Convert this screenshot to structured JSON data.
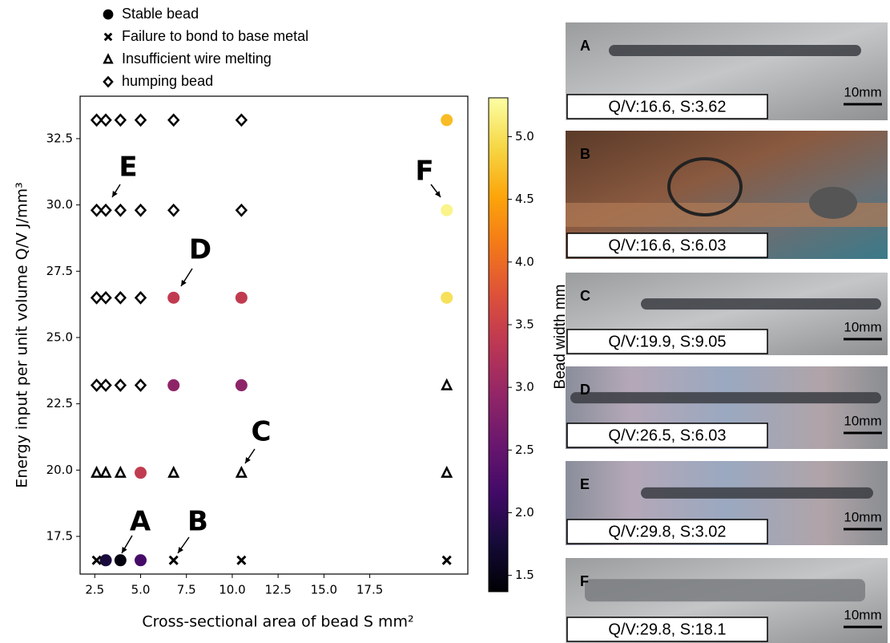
{
  "chart_data": {
    "type": "scatter",
    "xlabel": "Cross-sectional  area of bead S mm²",
    "ylabel": "Energy input per unit volume Q/V J/mm³",
    "xlim": [
      1.7,
      22.85
    ],
    "xticks": [
      2.5,
      {
        "value": 5,
        "label": "5.0"
      },
      7.5,
      {
        "value": 10,
        "label": "10.0"
      },
      12.5,
      {
        "value": 15,
        "label": "15.0"
      },
      17.5
    ],
    "ylim": [
      16.08,
      34.1
    ],
    "yticks": [
      17.5,
      {
        "value": 20,
        "label": "20.0"
      },
      22.5,
      {
        "value": 25,
        "label": "25.0"
      },
      27.5,
      {
        "value": 30,
        "label": "30.0"
      },
      32.5
    ],
    "colormap": "inferno",
    "clabel": "Bead width mm",
    "clim": [
      1.37,
      5.31
    ],
    "cticks": [
      1.5,
      {
        "value": 2,
        "label": "2.0"
      },
      2.5,
      {
        "value": 3,
        "label": "3.0"
      },
      3.5,
      {
        "value": 4,
        "label": "4.0"
      },
      4.5,
      {
        "value": 5,
        "label": "5.0"
      }
    ],
    "series": [
      {
        "name": "Stable bead",
        "marker": "circle",
        "color": "#000000",
        "x": [
          3.1,
          3.9,
          5.0,
          5.0,
          6.8,
          10.5,
          6.8,
          10.5,
          21.7,
          21.7,
          21.7
        ],
        "y": [
          16.6,
          16.6,
          16.6,
          19.9,
          23.2,
          23.2,
          26.5,
          26.5,
          26.5,
          29.8,
          33.2
        ],
        "values": [
          1.8,
          1.45,
          2.2,
          3.4,
          2.9,
          2.9,
          3.4,
          3.4,
          5.0,
          5.2,
          4.7
        ]
      },
      {
        "name": "Failure to bond to base metal",
        "marker": "cross",
        "color": "#000000",
        "x": [
          2.6,
          6.8,
          10.5,
          21.7
        ],
        "y": [
          16.6,
          16.6,
          16.6,
          16.6
        ]
      },
      {
        "name": "Insufficient  wire melting",
        "marker": "triangle",
        "color": "#000000",
        "x": [
          2.6,
          3.1,
          3.9,
          6.8,
          10.5,
          21.7,
          21.7
        ],
        "y": [
          19.9,
          19.9,
          19.9,
          19.9,
          19.9,
          19.9,
          23.2
        ]
      },
      {
        "name": "humping bead",
        "marker": "diamond",
        "color": "#000000",
        "x": [
          2.6,
          3.1,
          3.9,
          5.0,
          6.8,
          10.5,
          2.6,
          3.1,
          3.9,
          5.0,
          6.8,
          10.5,
          2.6,
          3.1,
          3.9,
          5.0,
          2.6,
          3.1,
          3.9,
          5.0
        ],
        "y": [
          33.2,
          33.2,
          33.2,
          33.2,
          33.2,
          33.2,
          29.8,
          29.8,
          29.8,
          29.8,
          29.8,
          29.8,
          26.5,
          26.5,
          26.5,
          26.5,
          23.2,
          23.2,
          23.2,
          23.2
        ]
      }
    ],
    "annotations": [
      "A",
      "B",
      "C",
      "D",
      "E",
      "F"
    ]
  },
  "panels": [
    {
      "label": "A",
      "caption": "Q/V:16.6, S:3.62",
      "scale": "10mm"
    },
    {
      "label": "B",
      "caption": "Q/V:16.6, S:6.03"
    },
    {
      "label": "C",
      "caption": "Q/V:19.9, S:9.05",
      "scale": "10mm"
    },
    {
      "label": "D",
      "caption": "Q/V:26.5, S:6.03",
      "scale": "10mm"
    },
    {
      "label": "E",
      "caption": "Q/V:29.8, S:3.02",
      "scale": "10mm"
    },
    {
      "label": "F",
      "caption": "Q/V:29.8, S:18.1",
      "scale": "10mm"
    }
  ]
}
